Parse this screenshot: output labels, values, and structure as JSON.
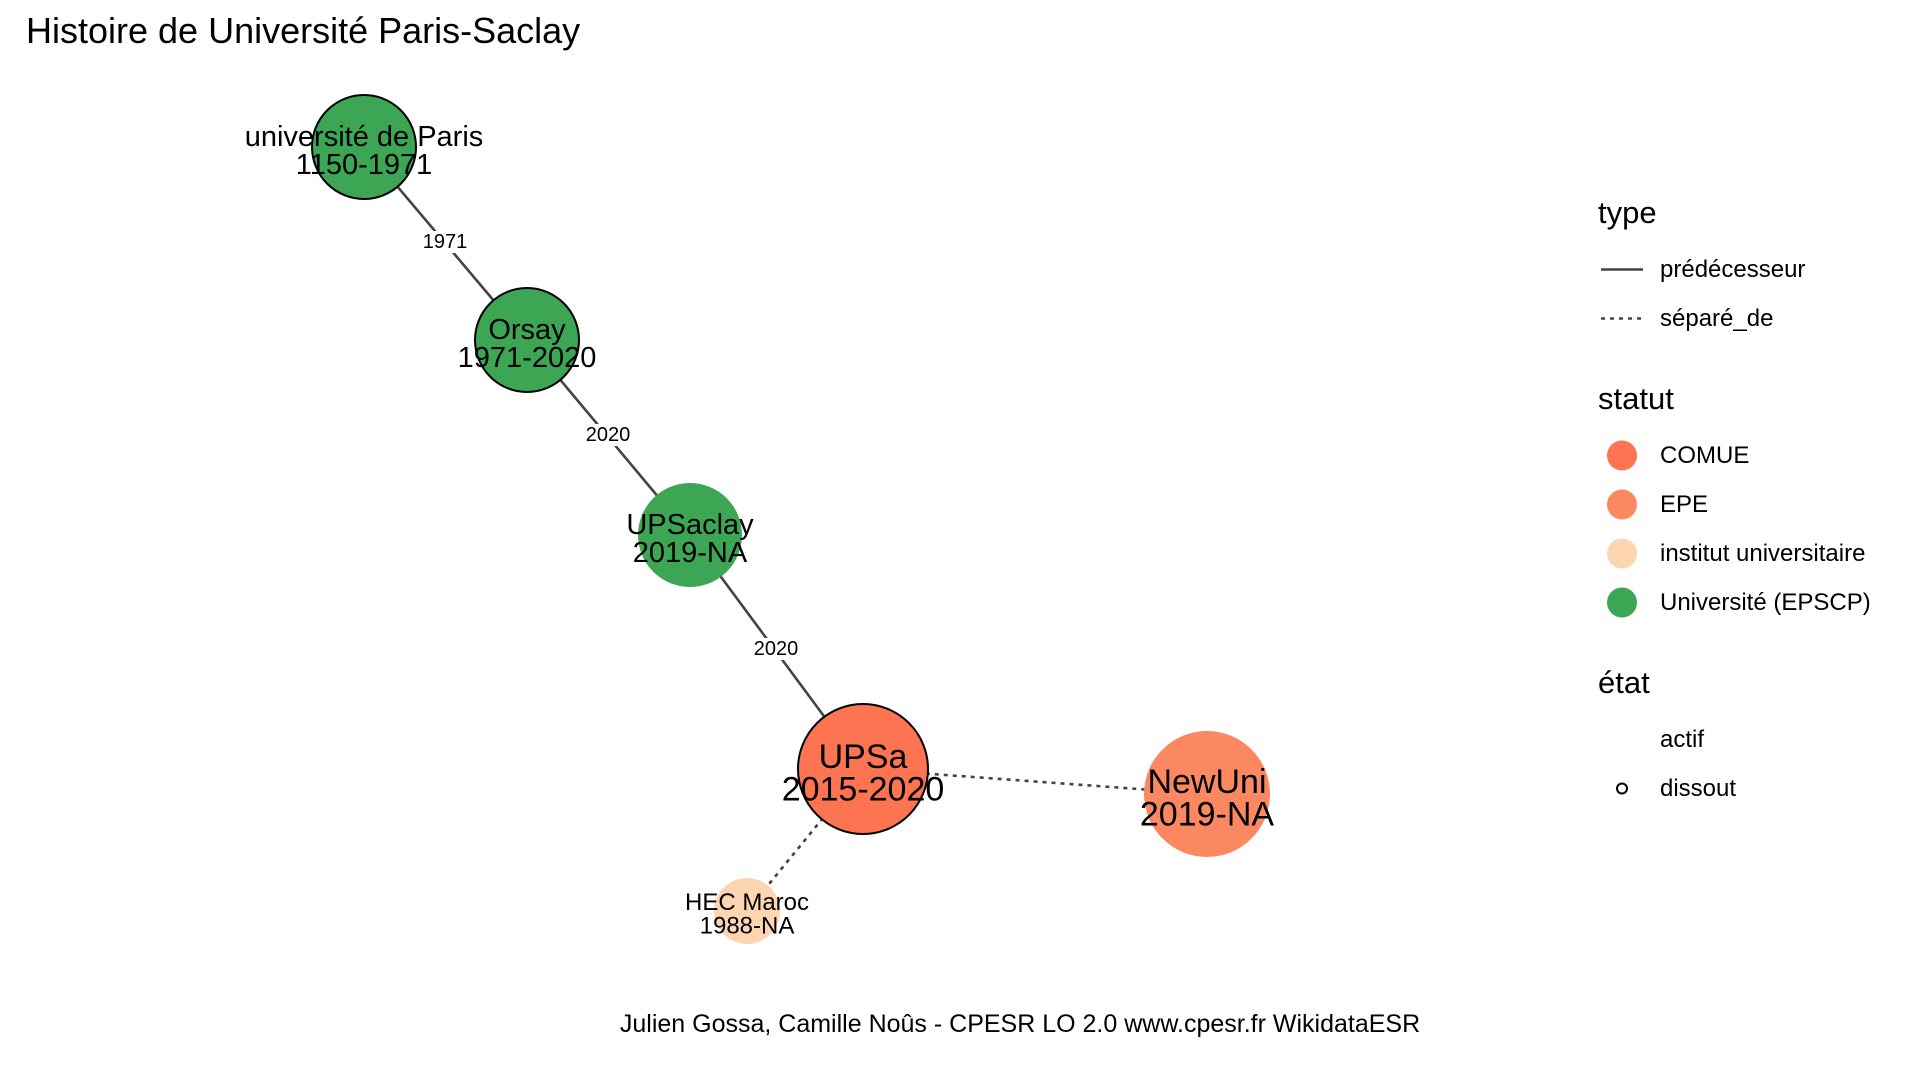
{
  "title": "Histoire de Université Paris-Saclay",
  "caption": "Julien Gossa, Camille Noûs - CPESR LO 2.0 www.cpesr.fr WikidataESR",
  "colors": {
    "COMUE": "#FC7452",
    "EPE": "#FC8862",
    "institut universitaire": "#FDD5B0",
    "Université (EPSCP)": "#3DA655",
    "edge": "#444444"
  },
  "legend": {
    "type": {
      "title": "type",
      "items": [
        {
          "label": "prédécesseur",
          "style": "solid"
        },
        {
          "label": "séparé_de",
          "style": "dotted"
        }
      ]
    },
    "statut": {
      "title": "statut",
      "items": [
        {
          "label": "COMUE"
        },
        {
          "label": "EPE"
        },
        {
          "label": "institut universitaire"
        },
        {
          "label": "Université (EPSCP)"
        }
      ]
    },
    "etat": {
      "title": "état",
      "items": [
        {
          "label": "actif",
          "outlined": false
        },
        {
          "label": "dissout",
          "outlined": true
        }
      ]
    }
  },
  "nodes": [
    {
      "id": "paris",
      "name": "université de Paris",
      "years": "1150-1971",
      "statut": "Université (EPSCP)",
      "etat": "dissout"
    },
    {
      "id": "orsay",
      "name": "Orsay",
      "years": "1971-2020",
      "statut": "Université (EPSCP)",
      "etat": "dissout"
    },
    {
      "id": "upsaclay",
      "name": "UPSaclay",
      "years": "2019-NA",
      "statut": "Université (EPSCP)",
      "etat": "actif"
    },
    {
      "id": "upsa",
      "name": "UPSa",
      "years": "2015-2020",
      "statut": "COMUE",
      "etat": "dissout"
    },
    {
      "id": "newuni",
      "name": "NewUni",
      "years": "2019-NA",
      "statut": "EPE",
      "etat": "actif"
    },
    {
      "id": "hec",
      "name": "HEC Maroc",
      "years": "1988-NA",
      "statut": "institut universitaire",
      "etat": "actif"
    }
  ],
  "edges": [
    {
      "from": "paris",
      "to": "orsay",
      "type": "prédécesseur",
      "label": "1971"
    },
    {
      "from": "orsay",
      "to": "upsaclay",
      "type": "prédécesseur",
      "label": "2020"
    },
    {
      "from": "upsaclay",
      "to": "upsa",
      "type": "prédécesseur",
      "label": "2020"
    },
    {
      "from": "upsa",
      "to": "newuni",
      "type": "séparé_de",
      "label": ""
    },
    {
      "from": "upsa",
      "to": "hec",
      "type": "séparé_de",
      "label": ""
    }
  ]
}
